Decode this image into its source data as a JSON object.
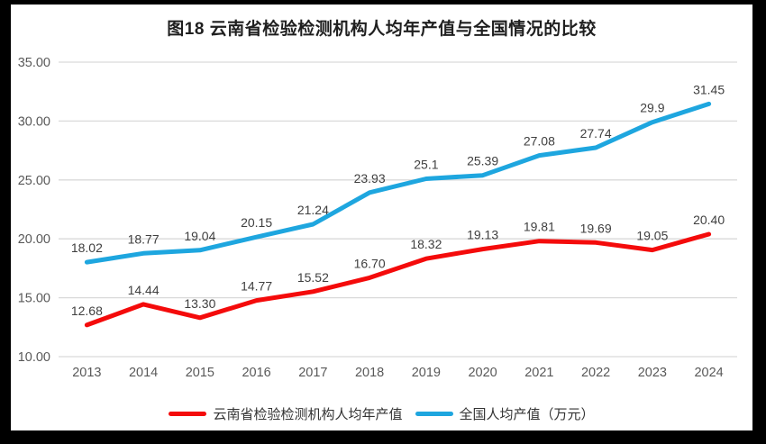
{
  "chart_data": {
    "type": "line",
    "title": "图18 云南省检验检测机构人均年产值与全国情况的比较",
    "categories": [
      "2013",
      "2014",
      "2015",
      "2016",
      "2017",
      "2018",
      "2019",
      "2020",
      "2021",
      "2022",
      "2023",
      "2024"
    ],
    "series": [
      {
        "name": "云南省检验检测机构人均年产值",
        "color": "#f40b0b",
        "values": [
          12.68,
          14.44,
          13.3,
          14.77,
          15.52,
          16.7,
          18.32,
          19.13,
          19.81,
          19.69,
          19.05,
          20.4
        ],
        "labels": [
          "12.68",
          "14.44",
          "13.30",
          "14.77",
          "15.52",
          "16.70",
          "18.32",
          "19.13",
          "19.81",
          "19.69",
          "19.05",
          "20.40"
        ]
      },
      {
        "name": "全国人均产值（万元）",
        "color": "#1ea6df",
        "values": [
          18.02,
          18.77,
          19.04,
          20.15,
          21.24,
          23.93,
          25.1,
          25.39,
          27.08,
          27.74,
          29.9,
          31.45
        ],
        "labels": [
          "18.02",
          "18.77",
          "19.04",
          "20.15",
          "21.24",
          "23.93",
          "25.1",
          "25.39",
          "27.08",
          "27.74",
          "29.9",
          "31.45"
        ]
      }
    ],
    "ylim": [
      10,
      35
    ],
    "ytick_step": 5,
    "yticks": [
      "10.00",
      "15.00",
      "20.00",
      "25.00",
      "30.00",
      "35.00"
    ],
    "xlabel": "",
    "ylabel": "",
    "grid": true,
    "legend_position": "bottom",
    "colors": {
      "gridline": "#d9d9d9",
      "axis_text": "#595959",
      "label_text": "#3f3f3f",
      "background": "#ffffff",
      "frame": "#000000"
    }
  }
}
